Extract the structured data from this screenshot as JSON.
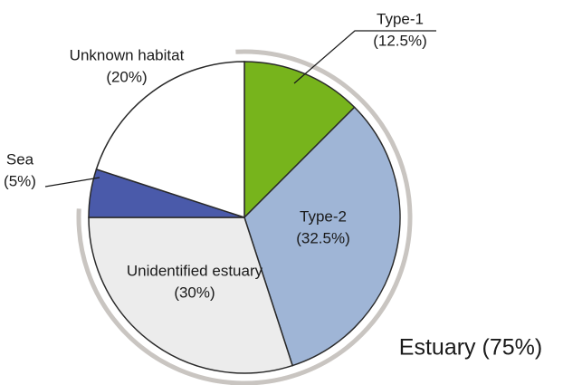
{
  "chart_data": {
    "type": "pie",
    "categories": [
      "Type-1",
      "Type-2",
      "Unidentified estuary",
      "Sea",
      "Unknown habitat"
    ],
    "values": [
      12.5,
      32.5,
      30,
      5,
      20
    ],
    "value_labels": [
      "(12.5%)",
      "(32.5%)",
      "(30%)",
      "(5%)",
      "(20%)"
    ],
    "colors": [
      "#77b41c",
      "#9fb5d6",
      "#ececec",
      "#4a5aaa",
      "#ffffff"
    ],
    "annotation": "Estuary (75%)"
  }
}
